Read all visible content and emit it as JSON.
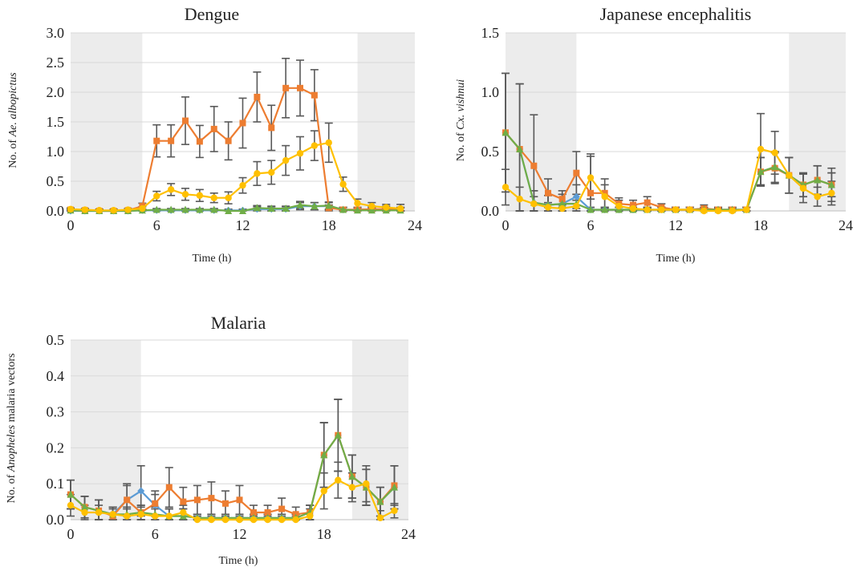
{
  "chart_data": [
    {
      "type": "line",
      "title": "Dengue",
      "xlabel": "Time (h)",
      "ylabel_prefix": "No. of ",
      "ylabel_italic": "Ae. albopictus",
      "ylabel_suffix": "",
      "xlim": [
        0,
        24
      ],
      "ylim": [
        0,
        3.0
      ],
      "xticks": [
        "0",
        "6",
        "12",
        "18",
        "24"
      ],
      "yticks": [
        "0.0",
        "0.5",
        "1.0",
        "1.5",
        "2.0",
        "2.5",
        "3.0"
      ],
      "shaded_hours": [
        [
          0,
          5
        ],
        [
          20,
          24
        ]
      ],
      "grid": true,
      "x": [
        0,
        1,
        2,
        3,
        4,
        5,
        6,
        7,
        8,
        9,
        10,
        11,
        12,
        13,
        14,
        15,
        16,
        17,
        18,
        19,
        20,
        21,
        22,
        23
      ],
      "series": [
        {
          "color": "#5B9BD5",
          "marker": "diamond",
          "values": [
            0,
            0,
            0,
            0,
            0,
            0.01,
            0.01,
            0.01,
            0.01,
            0.01,
            0.01,
            0.01,
            0.01,
            0.03,
            0.03,
            0.03,
            0.08,
            0.08,
            0.08,
            0.02,
            0.02,
            0.02,
            0.02,
            0.02
          ],
          "errors": [
            0.02,
            0.02,
            0.02,
            0.02,
            0.02,
            0.02,
            0.02,
            0.02,
            0.02,
            0.02,
            0.02,
            0.02,
            0.02,
            0.04,
            0.04,
            0.04,
            0.06,
            0.06,
            0.06,
            0.04,
            0.04,
            0.04,
            0.04,
            0.04
          ]
        },
        {
          "color": "#ED7D31",
          "marker": "square",
          "values": [
            0.02,
            0.01,
            0,
            0,
            0.01,
            0.08,
            1.18,
            1.18,
            1.52,
            1.17,
            1.38,
            1.18,
            1.48,
            1.92,
            1.4,
            2.07,
            2.07,
            1.95,
            0.05,
            0.02,
            0.02,
            0.03,
            0.03,
            0.02
          ],
          "errors": [
            0.02,
            0.02,
            0.02,
            0.02,
            0.02,
            0.05,
            0.27,
            0.27,
            0.4,
            0.27,
            0.38,
            0.32,
            0.42,
            0.42,
            0.38,
            0.5,
            0.47,
            0.43,
            0.05,
            0.04,
            0.04,
            0.05,
            0.05,
            0.04
          ]
        },
        {
          "color": "#70AD47",
          "marker": "triangle",
          "values": [
            0.01,
            0,
            0,
            0,
            0,
            0.01,
            0.02,
            0.02,
            0.02,
            0.02,
            0.02,
            0,
            0,
            0.05,
            0.04,
            0.04,
            0.1,
            0.08,
            0.09,
            0.02,
            0.01,
            0.01,
            0.01,
            0.01
          ],
          "errors": [
            0.02,
            0.02,
            0.02,
            0.02,
            0.02,
            0.02,
            0.02,
            0.02,
            0.02,
            0.02,
            0.02,
            0.02,
            0.02,
            0.04,
            0.04,
            0.04,
            0.06,
            0.06,
            0.06,
            0.04,
            0.04,
            0.04,
            0.04,
            0.04
          ]
        },
        {
          "color": "#FFC000",
          "marker": "circle",
          "values": [
            0.03,
            0.02,
            0.01,
            0.01,
            0.02,
            0.04,
            0.25,
            0.36,
            0.28,
            0.26,
            0.22,
            0.22,
            0.43,
            0.63,
            0.65,
            0.85,
            0.97,
            1.1,
            1.15,
            0.45,
            0.13,
            0.08,
            0.06,
            0.04
          ],
          "errors": [
            0.02,
            0.02,
            0.02,
            0.02,
            0.02,
            0.03,
            0.08,
            0.1,
            0.1,
            0.1,
            0.08,
            0.1,
            0.13,
            0.2,
            0.2,
            0.25,
            0.28,
            0.25,
            0.33,
            0.12,
            0.07,
            0.06,
            0.05,
            0.07
          ]
        }
      ]
    },
    {
      "type": "line",
      "title": "Japanese encephalitis",
      "xlabel": "Time (h)",
      "ylabel_prefix": "No. of ",
      "ylabel_italic": "Cx. vishnui",
      "ylabel_suffix": "",
      "xlim": [
        0,
        24
      ],
      "ylim": [
        0,
        1.5
      ],
      "xticks": [
        "0",
        "6",
        "12",
        "18",
        "24"
      ],
      "yticks": [
        "0.0",
        "0.5",
        "1.0",
        "1.5"
      ],
      "shaded_hours": [
        [
          0,
          5
        ],
        [
          20,
          24
        ]
      ],
      "grid": true,
      "x": [
        0,
        1,
        2,
        3,
        4,
        5,
        6,
        7,
        8,
        9,
        10,
        11,
        12,
        13,
        14,
        15,
        16,
        17,
        18,
        19,
        20,
        21,
        22,
        23
      ],
      "series": [
        {
          "color": "#5B9BD5",
          "marker": "diamond",
          "values": [
            0.66,
            0.52,
            0.07,
            0.05,
            0.06,
            0.12,
            0.01,
            0.01,
            0.01,
            0.01,
            0.01,
            0.01,
            0.01,
            0.01,
            0.01,
            0.01,
            0.01,
            0.01,
            0.33,
            0.37,
            0.3,
            0.22,
            0.26,
            0.22
          ],
          "errors": [
            0.5,
            0.55,
            0.1,
            0.08,
            0.08,
            0.1,
            0.02,
            0.02,
            0.02,
            0.02,
            0.02,
            0.02,
            0.02,
            0.02,
            0.02,
            0.02,
            0.02,
            0.02,
            0.12,
            0.13,
            0.15,
            0.1,
            0.12,
            0.1
          ]
        },
        {
          "color": "#ED7D31",
          "marker": "square",
          "values": [
            0.66,
            0.52,
            0.38,
            0.15,
            0.1,
            0.32,
            0.15,
            0.15,
            0.06,
            0.05,
            0.07,
            0.03,
            0.01,
            0.01,
            0.02,
            0.01,
            0.01,
            0.01,
            0.33,
            0.36,
            0.3,
            0.22,
            0.26,
            0.22
          ],
          "errors": [
            0.5,
            0.55,
            0.43,
            0.12,
            0.07,
            0.18,
            0.33,
            0.12,
            0.05,
            0.04,
            0.05,
            0.03,
            0.02,
            0.02,
            0.03,
            0.02,
            0.02,
            0.02,
            0.12,
            0.13,
            0.15,
            0.1,
            0.12,
            0.14
          ]
        },
        {
          "color": "#70AD47",
          "marker": "triangle",
          "values": [
            0.66,
            0.52,
            0.07,
            0.05,
            0.06,
            0.06,
            0.01,
            0.01,
            0.01,
            0.01,
            0.01,
            0.01,
            0.01,
            0.01,
            0.01,
            0.01,
            0.01,
            0.01,
            0.33,
            0.37,
            0.3,
            0.22,
            0.26,
            0.22
          ],
          "errors": [
            0.5,
            0.55,
            0.1,
            0.08,
            0.08,
            0.08,
            0.02,
            0.02,
            0.02,
            0.02,
            0.02,
            0.02,
            0.02,
            0.02,
            0.02,
            0.02,
            0.02,
            0.02,
            0.12,
            0.13,
            0.15,
            0.1,
            0.12,
            0.1
          ]
        },
        {
          "color": "#FFC000",
          "marker": "circle",
          "values": [
            0.2,
            0.1,
            0.06,
            0.03,
            0.02,
            0.04,
            0.28,
            0.12,
            0.04,
            0.02,
            0.01,
            0.01,
            0.01,
            0.01,
            0,
            0,
            0,
            0.01,
            0.52,
            0.49,
            0.3,
            0.19,
            0.12,
            0.15
          ],
          "errors": [
            0.15,
            0.1,
            0.06,
            0.04,
            0.03,
            0.05,
            0.18,
            0.1,
            0.05,
            0.03,
            0.02,
            0.02,
            0.02,
            0.02,
            0.02,
            0.02,
            0.02,
            0.02,
            0.3,
            0.18,
            0.15,
            0.12,
            0.08,
            0.1
          ]
        }
      ]
    },
    {
      "type": "line",
      "title": "Malaria",
      "xlabel": "Time (h)",
      "ylabel_prefix": "No. of ",
      "ylabel_italic": "Anopheles",
      "ylabel_suffix": " malaria vectors",
      "xlim": [
        0,
        24
      ],
      "ylim": [
        0,
        0.5
      ],
      "xticks": [
        "0",
        "6",
        "12",
        "18",
        "24"
      ],
      "yticks": [
        "0.0",
        "0.1",
        "0.2",
        "0.3",
        "0.4",
        "0.5"
      ],
      "shaded_hours": [
        [
          0,
          5
        ],
        [
          20,
          24
        ]
      ],
      "grid": true,
      "x": [
        0,
        1,
        2,
        3,
        4,
        5,
        6,
        7,
        8,
        9,
        10,
        11,
        12,
        13,
        14,
        15,
        16,
        17,
        18,
        19,
        20,
        21,
        22,
        23
      ],
      "series": [
        {
          "color": "#5B9BD5",
          "marker": "diamond",
          "values": [
            0.07,
            0.035,
            0.025,
            0.015,
            0.055,
            0.08,
            0.04,
            0.01,
            0.01,
            0.005,
            0.005,
            0.005,
            0.005,
            0.005,
            0.005,
            0.005,
            0.005,
            0.02,
            0.18,
            0.235,
            0.12,
            0.09,
            0.05,
            0.09
          ],
          "errors": [
            0.04,
            0.03,
            0.03,
            0.02,
            0.04,
            0.07,
            0.03,
            0.02,
            0.02,
            0.01,
            0.01,
            0.01,
            0.01,
            0.01,
            0.01,
            0.01,
            0.01,
            0.02,
            0.09,
            0.1,
            0.06,
            0.05,
            0.04,
            0.06
          ]
        },
        {
          "color": "#ED7D31",
          "marker": "square",
          "values": [
            0.07,
            0.035,
            0.025,
            0.01,
            0.055,
            0.02,
            0.045,
            0.09,
            0.05,
            0.055,
            0.06,
            0.045,
            0.055,
            0.02,
            0.02,
            0.03,
            0.015,
            0.02,
            0.18,
            0.235,
            0.12,
            0.09,
            0.05,
            0.095
          ],
          "errors": [
            0.04,
            0.03,
            0.03,
            0.02,
            0.045,
            0.02,
            0.035,
            0.055,
            0.04,
            0.04,
            0.045,
            0.035,
            0.04,
            0.02,
            0.02,
            0.03,
            0.02,
            0.02,
            0.09,
            0.1,
            0.06,
            0.05,
            0.04,
            0.055
          ]
        },
        {
          "color": "#70AD47",
          "marker": "triangle",
          "values": [
            0.07,
            0.035,
            0.025,
            0.015,
            0.015,
            0.02,
            0.015,
            0.01,
            0.01,
            0.005,
            0.005,
            0.005,
            0.005,
            0.005,
            0.005,
            0.005,
            0.005,
            0.02,
            0.18,
            0.235,
            0.12,
            0.09,
            0.05,
            0.09
          ],
          "errors": [
            0.04,
            0.03,
            0.03,
            0.02,
            0.02,
            0.02,
            0.02,
            0.02,
            0.02,
            0.01,
            0.01,
            0.01,
            0.01,
            0.01,
            0.01,
            0.01,
            0.01,
            0.02,
            0.09,
            0.1,
            0.06,
            0.05,
            0.04,
            0.06
          ]
        },
        {
          "color": "#FFC000",
          "marker": "circle",
          "values": [
            0.04,
            0.02,
            0.02,
            0.015,
            0.01,
            0.015,
            0.01,
            0.01,
            0.02,
            0,
            0,
            0,
            0,
            0,
            0,
            0,
            0,
            0.01,
            0.08,
            0.11,
            0.09,
            0.1,
            0.005,
            0.025
          ],
          "errors": [
            0.03,
            0.02,
            0.02,
            0.02,
            0.02,
            0.02,
            0.02,
            0.02,
            0.02,
            0.01,
            0.01,
            0.01,
            0.01,
            0.01,
            0.01,
            0.01,
            0.01,
            0.02,
            0.05,
            0.05,
            0.04,
            0.05,
            0.02,
            0.02
          ]
        }
      ]
    }
  ]
}
